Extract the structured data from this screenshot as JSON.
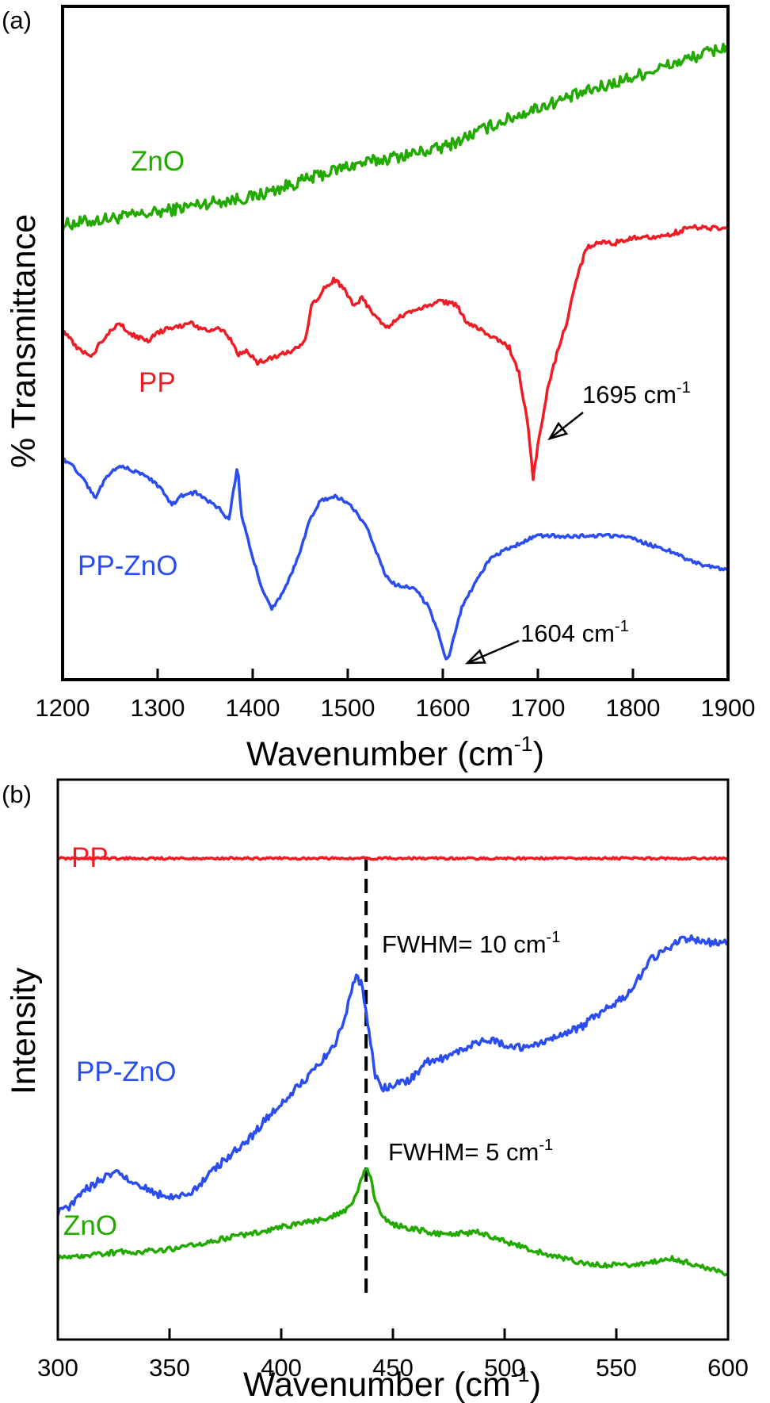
{
  "chart_data": [
    {
      "panel": "(a)",
      "type": "line",
      "xlabel": "Wavenumber (cm",
      "xlabel_sup": "-1",
      "xlabel_end": ")",
      "ylabel": "% Transmittance",
      "xlim": [
        1200,
        1900
      ],
      "ylim": [
        0,
        100
      ],
      "grid": false,
      "y_ticks_shown": false,
      "x_ticks": [
        "1200",
        "1300",
        "1400",
        "1500",
        "1600",
        "1700",
        "1800",
        "1900"
      ],
      "series": [
        {
          "name": "ZnO",
          "color": "#22aa00",
          "noise": 1.0,
          "points": [
            [
              1200,
              71
            ],
            [
              1250,
              72
            ],
            [
              1300,
              73
            ],
            [
              1350,
              74.5
            ],
            [
              1400,
              75.5
            ],
            [
              1450,
              78
            ],
            [
              1500,
              80.5
            ],
            [
              1550,
              82
            ],
            [
              1600,
              83.5
            ],
            [
              1650,
              87
            ],
            [
              1700,
              90
            ],
            [
              1750,
              92.5
            ],
            [
              1800,
              95
            ],
            [
              1850,
              97.5
            ],
            [
              1900,
              100
            ]
          ]
        },
        {
          "name": "PP",
          "color": "#ee1c25",
          "noise": 0.4,
          "points": [
            [
              1200,
              54
            ],
            [
              1215,
              51
            ],
            [
              1230,
              49.5
            ],
            [
              1245,
              53
            ],
            [
              1260,
              55
            ],
            [
              1275,
              53
            ],
            [
              1290,
              52
            ],
            [
              1300,
              53.5
            ],
            [
              1320,
              54.5
            ],
            [
              1335,
              55
            ],
            [
              1350,
              54
            ],
            [
              1370,
              54
            ],
            [
              1378,
              52
            ],
            [
              1385,
              50
            ],
            [
              1395,
              50.5
            ],
            [
              1405,
              48.5
            ],
            [
              1420,
              49.5
            ],
            [
              1440,
              50.5
            ],
            [
              1455,
              52
            ],
            [
              1462,
              58
            ],
            [
              1475,
              60.5
            ],
            [
              1485,
              62
            ],
            [
              1495,
              61
            ],
            [
              1505,
              58
            ],
            [
              1515,
              59
            ],
            [
              1525,
              57
            ],
            [
              1540,
              54
            ],
            [
              1555,
              56
            ],
            [
              1570,
              57
            ],
            [
              1585,
              58
            ],
            [
              1600,
              58.5
            ],
            [
              1615,
              58
            ],
            [
              1625,
              55
            ],
            [
              1640,
              54
            ],
            [
              1655,
              52.5
            ],
            [
              1670,
              51
            ],
            [
              1680,
              47
            ],
            [
              1690,
              38
            ],
            [
              1695,
              30
            ],
            [
              1700,
              35
            ],
            [
              1710,
              44
            ],
            [
              1720,
              50
            ],
            [
              1730,
              55
            ],
            [
              1740,
              62
            ],
            [
              1752,
              67.5
            ],
            [
              1765,
              68
            ],
            [
              1780,
              68
            ],
            [
              1800,
              69
            ],
            [
              1820,
              69
            ],
            [
              1840,
              69.5
            ],
            [
              1860,
              70.5
            ],
            [
              1880,
              70.5
            ],
            [
              1900,
              70.5
            ]
          ]
        },
        {
          "name": "PP-ZnO",
          "color": "#2b4df0",
          "noise": 0.3,
          "points": [
            [
              1200,
              33
            ],
            [
              1210,
              32
            ],
            [
              1225,
              29
            ],
            [
              1235,
              26.5
            ],
            [
              1245,
              30
            ],
            [
              1260,
              32
            ],
            [
              1275,
              31
            ],
            [
              1290,
              30
            ],
            [
              1305,
              28
            ],
            [
              1315,
              25.5
            ],
            [
              1325,
              27
            ],
            [
              1340,
              27.5
            ],
            [
              1355,
              26
            ],
            [
              1365,
              25
            ],
            [
              1375,
              23
            ],
            [
              1380,
              28
            ],
            [
              1384,
              32
            ],
            [
              1388,
              24
            ],
            [
              1400,
              17
            ],
            [
              1410,
              12
            ],
            [
              1420,
              8.5
            ],
            [
              1430,
              11
            ],
            [
              1440,
              14
            ],
            [
              1450,
              18
            ],
            [
              1460,
              23
            ],
            [
              1470,
              26
            ],
            [
              1485,
              27
            ],
            [
              1500,
              26
            ],
            [
              1520,
              22
            ],
            [
              1530,
              18
            ],
            [
              1540,
              14
            ],
            [
              1550,
              12.5
            ],
            [
              1570,
              12
            ],
            [
              1585,
              9
            ],
            [
              1595,
              5
            ],
            [
              1600,
              2
            ],
            [
              1604,
              0
            ],
            [
              1610,
              3
            ],
            [
              1620,
              9
            ],
            [
              1635,
              13
            ],
            [
              1650,
              17
            ],
            [
              1670,
              18.5
            ],
            [
              1690,
              20
            ],
            [
              1700,
              20.5
            ],
            [
              1720,
              20.5
            ],
            [
              1740,
              20.5
            ],
            [
              1760,
              20.5
            ],
            [
              1780,
              20.5
            ],
            [
              1800,
              20
            ],
            [
              1820,
              19
            ],
            [
              1840,
              18
            ],
            [
              1860,
              16.5
            ],
            [
              1880,
              15.5
            ],
            [
              1900,
              15
            ]
          ]
        }
      ],
      "annotations": [
        {
          "text": "1695 cm",
          "sup": "-1",
          "target_x": 1695,
          "target_series": "PP"
        },
        {
          "text": "1604 cm",
          "sup": "-1",
          "target_x": 1604,
          "target_series": "PP-ZnO"
        }
      ]
    },
    {
      "panel": "(b)",
      "type": "line",
      "xlabel": "Wavenumber (cm",
      "xlabel_sup": "-1",
      "xlabel_end": ")",
      "ylabel": "Intensity",
      "xlim": [
        300,
        600
      ],
      "ylim": [
        0,
        100
      ],
      "grid": false,
      "y_ticks_shown": false,
      "x_ticks": [
        "300",
        "350",
        "400",
        "450",
        "500",
        "550",
        "600"
      ],
      "series": [
        {
          "name": "PP",
          "color": "#ee1c25",
          "noise": 0.25,
          "points": [
            [
              300,
              96
            ],
            [
              350,
              96
            ],
            [
              400,
              96
            ],
            [
              450,
              96
            ],
            [
              500,
              96
            ],
            [
              550,
              96
            ],
            [
              600,
              96
            ]
          ]
        },
        {
          "name": "PP-ZnO",
          "color": "#2b4df0",
          "noise": 0.9,
          "points": [
            [
              300,
              16
            ],
            [
              305,
              17
            ],
            [
              310,
              20
            ],
            [
              318,
              23
            ],
            [
              325,
              25
            ],
            [
              333,
              23
            ],
            [
              340,
              21
            ],
            [
              350,
              19
            ],
            [
              358,
              20
            ],
            [
              365,
              23
            ],
            [
              375,
              28
            ],
            [
              385,
              32
            ],
            [
              395,
              38
            ],
            [
              405,
              43
            ],
            [
              415,
              48
            ],
            [
              425,
              55
            ],
            [
              430,
              63
            ],
            [
              433,
              69
            ],
            [
              436,
              68
            ],
            [
              439,
              58
            ],
            [
              442,
              47
            ],
            [
              445,
              44
            ],
            [
              452,
              45
            ],
            [
              458,
              46
            ],
            [
              465,
              50
            ],
            [
              475,
              51
            ],
            [
              485,
              54
            ],
            [
              495,
              55
            ],
            [
              505,
              53
            ],
            [
              515,
              54
            ],
            [
              525,
              56
            ],
            [
              535,
              58
            ],
            [
              545,
              62
            ],
            [
              555,
              65
            ],
            [
              565,
              73
            ],
            [
              575,
              76
            ],
            [
              580,
              78
            ],
            [
              590,
              77
            ],
            [
              600,
              77
            ]
          ]
        },
        {
          "name": "ZnO",
          "color": "#22aa00",
          "noise": 0.6,
          "points": [
            [
              300,
              5.5
            ],
            [
              310,
              6
            ],
            [
              320,
              6.5
            ],
            [
              330,
              7
            ],
            [
              340,
              7
            ],
            [
              350,
              7.5
            ],
            [
              360,
              8.5
            ],
            [
              370,
              9.5
            ],
            [
              380,
              10.5
            ],
            [
              390,
              11.5
            ],
            [
              400,
              12.5
            ],
            [
              410,
              13.5
            ],
            [
              420,
              14.5
            ],
            [
              428,
              16
            ],
            [
              432,
              18
            ],
            [
              435,
              22
            ],
            [
              437.5,
              26
            ],
            [
              440,
              24
            ],
            [
              442,
              19
            ],
            [
              445,
              15
            ],
            [
              450,
              13
            ],
            [
              460,
              12
            ],
            [
              470,
              11
            ],
            [
              480,
              11
            ],
            [
              488,
              11.5
            ],
            [
              495,
              10
            ],
            [
              505,
              8.5
            ],
            [
              515,
              7
            ],
            [
              525,
              5.5
            ],
            [
              535,
              4.5
            ],
            [
              545,
              4
            ],
            [
              555,
              4
            ],
            [
              565,
              4.5
            ],
            [
              575,
              5.5
            ],
            [
              585,
              4
            ],
            [
              595,
              2.5
            ],
            [
              600,
              2
            ]
          ]
        }
      ],
      "reference_line_x": 438,
      "annotations": [
        {
          "text": "FWHM= 10  cm",
          "sup": "-1"
        },
        {
          "text": "FWHM= 5  cm",
          "sup": "-1"
        }
      ]
    }
  ]
}
